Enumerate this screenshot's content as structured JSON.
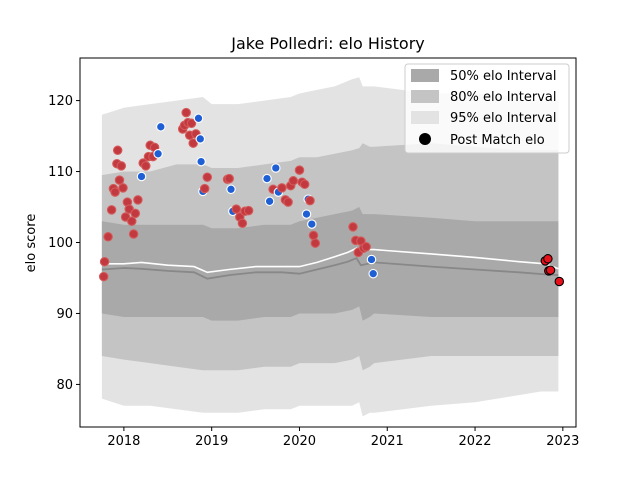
{
  "chart_data": {
    "type": "scatter",
    "title": "Jake Polledri: elo History",
    "xlabel": "",
    "ylabel": "elo score",
    "xlim": [
      2017.5,
      2023.15
    ],
    "ylim": [
      74,
      126
    ],
    "x_ticks": [
      2018,
      2019,
      2020,
      2021,
      2022,
      2023
    ],
    "x_tick_labels": [
      "2018",
      "2019",
      "2020",
      "2021",
      "2022",
      "2023"
    ],
    "y_ticks": [
      80,
      90,
      100,
      110,
      120
    ],
    "y_tick_labels": [
      "80",
      "90",
      "100",
      "110",
      "120"
    ],
    "legend": {
      "placement": "top-right",
      "entries": [
        "50% elo Interval",
        "80% elo Interval",
        "95% elo Interval",
        "Post Match elo"
      ]
    },
    "colors": {
      "band50": "#a9a9a9",
      "band80": "#c4c4c4",
      "band95": "#e3e3e3",
      "line_mean": "#ffffff",
      "line_median": "#888888",
      "point_win_fill": "#1e5fd6",
      "point_loss_fill": "#c2393f",
      "point_edge_win": "#ffffff",
      "point_edge_loss": "#d45a5a",
      "recent_fill": "#e8101a"
    },
    "band_x": [
      2017.75,
      2018.0,
      2018.3,
      2018.6,
      2018.9,
      2019.0,
      2019.3,
      2019.6,
      2019.9,
      2020.0,
      2020.2,
      2020.4,
      2020.6,
      2020.68,
      2020.72,
      2020.8,
      2020.85,
      2021.5,
      2022.0,
      2022.5,
      2022.75,
      2022.95
    ],
    "band95_upper": [
      118,
      119,
      119.5,
      120,
      120.5,
      119.5,
      119.5,
      120,
      120.5,
      121,
      121.5,
      122,
      123,
      123.3,
      122,
      122,
      122,
      121,
      121,
      120.5,
      120,
      120
    ],
    "band95_lower": [
      78,
      77,
      77,
      76.5,
      76,
      76,
      76,
      76.5,
      76.5,
      77,
      77,
      77,
      77,
      77.5,
      75.5,
      76,
      76,
      77,
      77.5,
      78.5,
      79,
      79
    ],
    "band80_upper": [
      109.5,
      110,
      110,
      111,
      111,
      110.5,
      110.5,
      111,
      111.5,
      112,
      112,
      112.5,
      113,
      113.3,
      114,
      113.5,
      113.5,
      114,
      113.5,
      113,
      113,
      113
    ],
    "band80_lower": [
      84,
      83.5,
      83,
      82.5,
      82,
      82,
      82,
      82.5,
      82.5,
      83,
      83,
      83,
      83.5,
      84,
      82,
      82.5,
      83,
      84,
      84,
      84,
      84,
      84
    ],
    "band50_upper": [
      103,
      102.5,
      102.5,
      102.5,
      102.5,
      102,
      102,
      102.5,
      102.5,
      103,
      103.5,
      104,
      104.5,
      105,
      104,
      104,
      104,
      103.5,
      103,
      103,
      103,
      103
    ],
    "band50_lower": [
      90,
      89.5,
      89.5,
      89.5,
      89.5,
      89,
      89,
      89.5,
      89.5,
      90,
      90,
      90,
      90.5,
      91,
      89,
      89.5,
      90,
      89.5,
      89.5,
      89.5,
      89.5,
      89.5
    ],
    "mean_line": {
      "x": [
        2017.75,
        2018.0,
        2018.2,
        2018.5,
        2018.8,
        2018.95,
        2019.2,
        2019.5,
        2019.8,
        2020.0,
        2020.2,
        2020.4,
        2020.55,
        2020.65,
        2020.7,
        2020.78,
        2020.85,
        2021.5,
        2022.0,
        2022.5,
        2022.8,
        2022.95
      ],
      "y": [
        97,
        97,
        97.2,
        96.8,
        96.6,
        95.8,
        96.2,
        96.6,
        96.6,
        96.6,
        97.2,
        98,
        98.6,
        99.2,
        98.5,
        99,
        99,
        98.4,
        97.9,
        97.3,
        97,
        96.3
      ]
    },
    "median_line": {
      "x": [
        2017.75,
        2018.0,
        2018.2,
        2018.5,
        2018.8,
        2018.95,
        2019.2,
        2019.5,
        2019.8,
        2020.0,
        2020.2,
        2020.4,
        2020.55,
        2020.65,
        2020.7,
        2020.78,
        2020.85,
        2021.5,
        2022.0,
        2022.5,
        2022.8,
        2022.95
      ],
      "y": [
        96.2,
        96.4,
        96.3,
        96,
        95.8,
        94.9,
        95.4,
        95.8,
        95.8,
        95.6,
        96.2,
        96.8,
        97.3,
        97.8,
        96.8,
        97,
        97.2,
        96.6,
        96.2,
        95.8,
        95.5,
        95.4
      ]
    },
    "points": [
      {
        "x": 2017.77,
        "y": 95.2,
        "r": "L"
      },
      {
        "x": 2017.78,
        "y": 97.3,
        "r": "L"
      },
      {
        "x": 2017.82,
        "y": 100.8,
        "r": "L"
      },
      {
        "x": 2017.86,
        "y": 104.6,
        "r": "L"
      },
      {
        "x": 2017.88,
        "y": 107.6,
        "r": "L"
      },
      {
        "x": 2017.9,
        "y": 107.1,
        "r": "L"
      },
      {
        "x": 2017.92,
        "y": 111.1,
        "r": "L"
      },
      {
        "x": 2017.93,
        "y": 113.0,
        "r": "L"
      },
      {
        "x": 2017.95,
        "y": 108.8,
        "r": "L"
      },
      {
        "x": 2017.97,
        "y": 110.8,
        "r": "L"
      },
      {
        "x": 2017.99,
        "y": 107.7,
        "r": "L"
      },
      {
        "x": 2018.02,
        "y": 103.6,
        "r": "L"
      },
      {
        "x": 2018.04,
        "y": 105.7,
        "r": "L"
      },
      {
        "x": 2018.06,
        "y": 104.7,
        "r": "L"
      },
      {
        "x": 2018.09,
        "y": 103.0,
        "r": "L"
      },
      {
        "x": 2018.11,
        "y": 101.2,
        "r": "L"
      },
      {
        "x": 2018.13,
        "y": 104.1,
        "r": "L"
      },
      {
        "x": 2018.16,
        "y": 106.0,
        "r": "L"
      },
      {
        "x": 2018.2,
        "y": 109.3,
        "r": "W"
      },
      {
        "x": 2018.22,
        "y": 111.2,
        "r": "L"
      },
      {
        "x": 2018.25,
        "y": 110.8,
        "r": "L"
      },
      {
        "x": 2018.28,
        "y": 112.1,
        "r": "L"
      },
      {
        "x": 2018.3,
        "y": 113.7,
        "r": "L"
      },
      {
        "x": 2018.33,
        "y": 112.1,
        "r": "L"
      },
      {
        "x": 2018.35,
        "y": 113.4,
        "r": "L"
      },
      {
        "x": 2018.39,
        "y": 112.5,
        "r": "W"
      },
      {
        "x": 2018.42,
        "y": 116.3,
        "r": "W"
      },
      {
        "x": 2018.67,
        "y": 116.0,
        "r": "L"
      },
      {
        "x": 2018.69,
        "y": 116.5,
        "r": "L"
      },
      {
        "x": 2018.71,
        "y": 118.3,
        "r": "L"
      },
      {
        "x": 2018.73,
        "y": 116.9,
        "r": "L"
      },
      {
        "x": 2018.75,
        "y": 115.1,
        "r": "L"
      },
      {
        "x": 2018.77,
        "y": 116.8,
        "r": "L"
      },
      {
        "x": 2018.79,
        "y": 114.0,
        "r": "L"
      },
      {
        "x": 2018.82,
        "y": 115.3,
        "r": "L"
      },
      {
        "x": 2018.85,
        "y": 117.5,
        "r": "W"
      },
      {
        "x": 2018.87,
        "y": 114.6,
        "r": "W"
      },
      {
        "x": 2018.88,
        "y": 111.4,
        "r": "W"
      },
      {
        "x": 2018.9,
        "y": 107.2,
        "r": "W"
      },
      {
        "x": 2018.92,
        "y": 107.6,
        "r": "L"
      },
      {
        "x": 2018.95,
        "y": 109.2,
        "r": "L"
      },
      {
        "x": 2019.18,
        "y": 108.9,
        "r": "L"
      },
      {
        "x": 2019.2,
        "y": 109.0,
        "r": "L"
      },
      {
        "x": 2019.22,
        "y": 107.5,
        "r": "W"
      },
      {
        "x": 2019.24,
        "y": 104.4,
        "r": "W"
      },
      {
        "x": 2019.28,
        "y": 104.7,
        "r": "L"
      },
      {
        "x": 2019.32,
        "y": 103.6,
        "r": "L"
      },
      {
        "x": 2019.35,
        "y": 102.7,
        "r": "L"
      },
      {
        "x": 2019.38,
        "y": 104.4,
        "r": "L"
      },
      {
        "x": 2019.42,
        "y": 104.5,
        "r": "L"
      },
      {
        "x": 2019.63,
        "y": 109.0,
        "r": "W"
      },
      {
        "x": 2019.66,
        "y": 105.8,
        "r": "W"
      },
      {
        "x": 2019.7,
        "y": 107.5,
        "r": "L"
      },
      {
        "x": 2019.73,
        "y": 110.5,
        "r": "W"
      },
      {
        "x": 2019.76,
        "y": 107.1,
        "r": "W"
      },
      {
        "x": 2019.8,
        "y": 107.7,
        "r": "L"
      },
      {
        "x": 2019.84,
        "y": 106.0,
        "r": "L"
      },
      {
        "x": 2019.87,
        "y": 105.7,
        "r": "L"
      },
      {
        "x": 2019.9,
        "y": 108.0,
        "r": "L"
      },
      {
        "x": 2019.93,
        "y": 108.7,
        "r": "L"
      },
      {
        "x": 2020.0,
        "y": 110.2,
        "r": "L"
      },
      {
        "x": 2020.03,
        "y": 108.5,
        "r": "L"
      },
      {
        "x": 2020.06,
        "y": 108.2,
        "r": "L"
      },
      {
        "x": 2020.08,
        "y": 104.0,
        "r": "W"
      },
      {
        "x": 2020.1,
        "y": 106.1,
        "r": "W"
      },
      {
        "x": 2020.12,
        "y": 105.9,
        "r": "L"
      },
      {
        "x": 2020.14,
        "y": 102.6,
        "r": "W"
      },
      {
        "x": 2020.16,
        "y": 101.0,
        "r": "L"
      },
      {
        "x": 2020.18,
        "y": 99.9,
        "r": "L"
      },
      {
        "x": 2020.61,
        "y": 102.2,
        "r": "L"
      },
      {
        "x": 2020.64,
        "y": 100.3,
        "r": "L"
      },
      {
        "x": 2020.67,
        "y": 98.6,
        "r": "L"
      },
      {
        "x": 2020.7,
        "y": 100.2,
        "r": "L"
      },
      {
        "x": 2020.73,
        "y": 99.2,
        "r": "L"
      },
      {
        "x": 2020.76,
        "y": 99.4,
        "r": "L"
      },
      {
        "x": 2020.82,
        "y": 97.6,
        "r": "W"
      },
      {
        "x": 2020.84,
        "y": 95.6,
        "r": "W"
      }
    ],
    "recent_points": [
      {
        "x": 2022.8,
        "y": 97.4,
        "r": "L"
      },
      {
        "x": 2022.83,
        "y": 97.7,
        "r": "L"
      },
      {
        "x": 2022.84,
        "y": 96.0,
        "r": "L"
      },
      {
        "x": 2022.86,
        "y": 96.1,
        "r": "L"
      },
      {
        "x": 2022.96,
        "y": 94.5,
        "r": "L"
      }
    ]
  }
}
